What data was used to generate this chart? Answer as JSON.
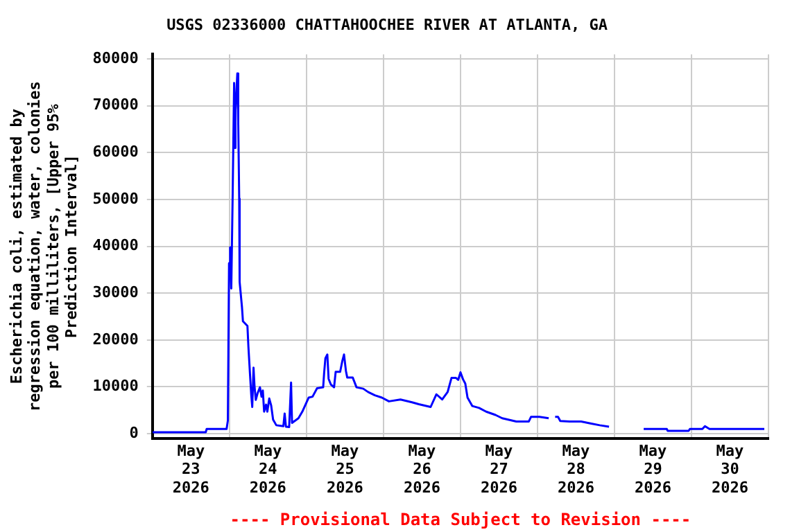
{
  "chart_data": {
    "type": "line",
    "title": "USGS 02336000 CHATTAHOOCHEE RIVER AT ATLANTA, GA",
    "ylabel": "Escherichia coli, estimated by regression equation, water, colonies per 100 milliliters, [Upper 95% Prediction Interval]",
    "annotations": [
      "---- Provisional Data Subject to Revision ----"
    ],
    "x": [
      "2026-05-23T00:00",
      "2026-05-23T16:36",
      "2026-05-23T16:54",
      "2026-05-23T23:06",
      "2026-05-23T23:30",
      "2026-05-23T23:52",
      "2026-05-24T00:12",
      "2026-05-24T00:34",
      "2026-05-24T01:00",
      "2026-05-24T01:27",
      "2026-05-24T01:44",
      "2026-05-24T01:52",
      "2026-05-24T02:27",
      "2026-05-24T02:44",
      "2026-05-24T03:02",
      "2026-05-24T03:10",
      "2026-05-24T03:54",
      "2026-05-24T04:12",
      "2026-05-24T05:36",
      "2026-05-24T05:54",
      "2026-05-24T06:24",
      "2026-05-24T06:48",
      "2026-05-24T07:06",
      "2026-05-24T07:30",
      "2026-05-24T07:48",
      "2026-05-24T08:12",
      "2026-05-24T08:48",
      "2026-05-24T09:30",
      "2026-05-24T10:00",
      "2026-05-24T10:24",
      "2026-05-24T10:48",
      "2026-05-24T11:24",
      "2026-05-24T11:48",
      "2026-05-24T12:24",
      "2026-05-24T13:00",
      "2026-05-24T13:36",
      "2026-05-24T14:36",
      "2026-05-24T16:48",
      "2026-05-24T17:12",
      "2026-05-24T17:36",
      "2026-05-24T18:36",
      "2026-05-24T19:12",
      "2026-05-24T19:30",
      "2026-05-24T20:06",
      "2026-05-24T21:30",
      "2026-05-24T22:42",
      "2026-05-24T23:42",
      "2026-05-25T00:42",
      "2026-05-25T01:54",
      "2026-05-25T03:18",
      "2026-05-25T05:12",
      "2026-05-25T05:30",
      "2026-05-25T05:54",
      "2026-05-25T06:30",
      "2026-05-25T06:54",
      "2026-05-25T07:36",
      "2026-05-25T08:36",
      "2026-05-25T09:06",
      "2026-05-25T10:30",
      "2026-05-25T11:12",
      "2026-05-25T11:42",
      "2026-05-25T12:18",
      "2026-05-25T12:42",
      "2026-05-25T14:24",
      "2026-05-25T15:36",
      "2026-05-25T17:42",
      "2026-05-25T19:12",
      "2026-05-25T21:18",
      "2026-05-25T23:30",
      "2026-05-26T01:42",
      "2026-05-26T05:18",
      "2026-05-26T08:54",
      "2026-05-26T11:00",
      "2026-05-26T14:42",
      "2026-05-26T16:30",
      "2026-05-26T18:18",
      "2026-05-26T20:00",
      "2026-05-26T21:12",
      "2026-05-26T22:36",
      "2026-05-26T23:18",
      "2026-05-27T00:00",
      "2026-05-27T00:48",
      "2026-05-27T01:30",
      "2026-05-27T02:12",
      "2026-05-27T03:42",
      "2026-05-27T05:48",
      "2026-05-27T08:00",
      "2026-05-27T10:54",
      "2026-05-27T13:00",
      "2026-05-27T17:24",
      "2026-05-27T21:18",
      "2026-05-27T22:00",
      "2026-05-28T00:36",
      "2026-05-28T03:30",
      "2026-05-28T04:30",
      "2026-05-28T05:30",
      "2026-05-28T06:24",
      "2026-05-28T07:06",
      "2026-05-28T10:00",
      "2026-05-28T13:36",
      "2026-05-28T16:30",
      "2026-05-28T19:24",
      "2026-05-28T22:18",
      "2026-05-29T04:00",
      "2026-05-29T09:06",
      "2026-05-29T16:18",
      "2026-05-29T16:36",
      "2026-05-29T23:06",
      "2026-05-29T23:30",
      "2026-05-30T03:24",
      "2026-05-30T04:12",
      "2026-05-30T05:36",
      "2026-05-30T22:42"
    ],
    "series": [
      {
        "color": "#0000ff",
        "values": [
          300,
          300,
          1000,
          1000,
          2800,
          36400,
          39800,
          31000,
          51200,
          74900,
          61000,
          69000,
          76900,
          66500,
          50200,
          32400,
          27000,
          24000,
          23000,
          18600,
          12700,
          8200,
          5700,
          14100,
          10200,
          7200,
          8700,
          9900,
          7900,
          9200,
          4700,
          6200,
          4700,
          7500,
          6000,
          3000,
          1800,
          1600,
          4300,
          1500,
          1400,
          10900,
          2300,
          2600,
          3300,
          4700,
          6200,
          7700,
          7900,
          9700,
          9900,
          12900,
          16100,
          16900,
          11700,
          10500,
          9900,
          13200,
          13200,
          15600,
          16900,
          13400,
          12000,
          12000,
          9900,
          9600,
          8900,
          8200,
          7700,
          6900,
          7300,
          6700,
          6300,
          5700,
          8400,
          7300,
          8900,
          11900,
          11900,
          11500,
          13100,
          11600,
          10700,
          7700,
          5900,
          5500,
          4700,
          4000,
          3300,
          2600,
          2600,
          3600,
          3600,
          3300,
          null,
          3600,
          3600,
          2700,
          2600,
          2600,
          2200,
          1800,
          1500,
          null,
          1000,
          1000,
          600,
          600,
          1000,
          1000,
          1600,
          1000,
          1000
        ]
      }
    ],
    "xlim": [
      "2026-05-23T00:00",
      "2026-05-31T00:00"
    ],
    "xticks": [
      {
        "value": "2026-05-23T00:00",
        "label": null
      },
      {
        "value": "2026-05-23T12:00",
        "label": "May 23 2026"
      },
      {
        "value": "2026-05-24T00:00",
        "label": null
      },
      {
        "value": "2026-05-24T12:00",
        "label": "May 24 2026"
      },
      {
        "value": "2026-05-25T00:00",
        "label": null
      },
      {
        "value": "2026-05-25T12:00",
        "label": "May 25 2026"
      },
      {
        "value": "2026-05-26T00:00",
        "label": null
      },
      {
        "value": "2026-05-26T12:00",
        "label": "May 26 2026"
      },
      {
        "value": "2026-05-27T00:00",
        "label": null
      },
      {
        "value": "2026-05-27T12:00",
        "label": "May 27 2026"
      },
      {
        "value": "2026-05-28T00:00",
        "label": null
      },
      {
        "value": "2026-05-28T12:00",
        "label": "May 28 2026"
      },
      {
        "value": "2026-05-29T00:00",
        "label": null
      },
      {
        "value": "2026-05-29T12:00",
        "label": "May 29 2026"
      },
      {
        "value": "2026-05-30T00:00",
        "label": null
      },
      {
        "value": "2026-05-30T12:00",
        "label": "May 30 2026"
      },
      {
        "value": "2026-05-31T00:00",
        "label": null
      }
    ],
    "ylim": [
      -1000,
      81000
    ],
    "yticks": [
      0,
      10000,
      20000,
      30000,
      40000,
      50000,
      60000,
      70000,
      80000
    ],
    "grid": true,
    "legend": false,
    "marker": "none",
    "line_style": "solid"
  }
}
